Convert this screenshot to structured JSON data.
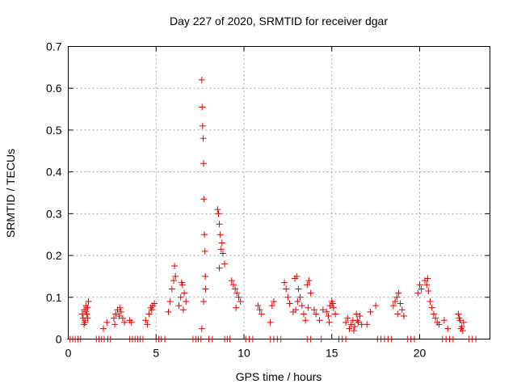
{
  "chart_data": {
    "type": "scatter",
    "title": "Day 227 of 2020, SRMTID for receiver dgar",
    "xlabel": "GPS time / hours",
    "ylabel": "SRMTID / TECUs",
    "xlim": [
      0,
      24
    ],
    "ylim": [
      0,
      0.7
    ],
    "xticks": [
      0,
      5,
      10,
      15,
      20
    ],
    "xtick_labels": [
      "0",
      "5",
      "10",
      "15",
      "20"
    ],
    "yticks": [
      0,
      0.1,
      0.2,
      0.3,
      0.4,
      0.5,
      0.6,
      0.7
    ],
    "ytick_labels": [
      "0",
      "0.1",
      "0.2",
      "0.3",
      "0.4",
      "0.5",
      "0.6",
      "0.7"
    ],
    "grid": true,
    "marker": "+",
    "color": "#e00000",
    "series": [
      {
        "name": "SRMTID",
        "x": [
          0.1,
          0.25,
          0.4,
          0.55,
          0.7,
          1.6,
          1.75,
          1.9,
          2.05,
          2.25,
          2.4,
          3.5,
          3.65,
          3.8,
          3.95,
          4.1,
          4.25,
          5.0,
          5.15,
          5.3,
          5.5,
          7.1,
          7.25,
          7.4,
          7.55,
          8.0,
          8.2,
          8.9,
          9.05,
          9.2,
          10.1,
          10.3,
          10.5,
          11.5,
          11.7,
          11.9,
          12.1,
          13.6,
          13.8,
          14.4,
          15.4,
          15.6,
          15.8,
          17.6,
          17.8,
          18.0,
          18.2,
          18.4,
          19.3,
          19.5,
          19.7,
          21.3,
          21.5,
          21.7,
          21.9,
          22.8,
          23.0,
          23.2,
          0.8,
          0.85,
          0.9,
          0.95,
          1.0,
          1.05,
          1.1,
          1.15,
          0.9,
          1.0,
          1.1,
          0.95,
          2.0,
          2.2,
          2.6,
          2.7,
          2.8,
          2.9,
          3.0,
          3.1,
          3.2,
          2.65,
          2.95,
          3.5,
          3.6,
          4.4,
          4.5,
          4.6,
          4.7,
          4.8,
          4.9,
          4.75,
          5.7,
          5.8,
          5.9,
          6.0,
          6.1,
          6.05,
          6.3,
          6.4,
          6.5,
          6.6,
          6.7,
          6.45,
          6.55,
          7.6,
          7.62,
          7.65,
          7.68,
          7.7,
          7.72,
          7.75,
          7.78,
          7.8,
          7.82,
          7.6,
          7.7,
          8.5,
          8.55,
          8.6,
          8.65,
          8.7,
          8.8,
          8.9,
          8.6,
          8.75,
          9.3,
          9.4,
          9.5,
          9.6,
          9.7,
          9.8,
          9.55,
          10.8,
          10.9,
          11.0,
          11.5,
          11.6,
          11.7,
          12.3,
          12.4,
          12.5,
          12.6,
          12.8,
          12.9,
          13.0,
          13.1,
          13.2,
          12.95,
          13.05,
          13.3,
          13.4,
          13.5,
          13.6,
          13.7,
          13.8,
          13.65,
          14.0,
          14.1,
          14.3,
          14.5,
          14.7,
          14.8,
          14.9,
          15.0,
          15.1,
          15.2,
          14.85,
          15.05,
          15.8,
          15.9,
          16.0,
          16.1,
          16.2,
          16.3,
          16.4,
          16.5,
          16.6,
          16.7,
          16.25,
          16.45,
          17.0,
          17.2,
          17.5,
          18.5,
          18.6,
          18.7,
          18.8,
          18.9,
          19.0,
          19.1,
          18.75,
          19.9,
          20.0,
          20.1,
          20.3,
          20.4,
          20.5,
          20.6,
          20.7,
          20.8,
          20.9,
          21.0,
          21.1,
          20.45,
          21.4,
          21.6,
          22.2,
          22.3,
          22.4,
          22.5,
          22.35,
          22.45,
          22.25
        ],
        "y": [
          0,
          0,
          0,
          0,
          0,
          0,
          0,
          0,
          0,
          0,
          0,
          0,
          0,
          0,
          0,
          0,
          0,
          0,
          0,
          0,
          0,
          0,
          0,
          0,
          0,
          0,
          0,
          0,
          0,
          0,
          0,
          0,
          0,
          0,
          0,
          0,
          0,
          0,
          0,
          0,
          0,
          0,
          0,
          0,
          0,
          0,
          0,
          0,
          0,
          0,
          0,
          0,
          0,
          0,
          0,
          0,
          0,
          0,
          0.06,
          0.05,
          0.07,
          0.04,
          0.08,
          0.06,
          0.05,
          0.09,
          0.035,
          0.065,
          0.075,
          0.045,
          0.025,
          0.04,
          0.05,
          0.06,
          0.07,
          0.055,
          0.065,
          0.05,
          0.04,
          0.035,
          0.075,
          0.045,
          0.04,
          0.045,
          0.035,
          0.06,
          0.075,
          0.08,
          0.085,
          0.07,
          0.065,
          0.09,
          0.12,
          0.14,
          0.15,
          0.175,
          0.08,
          0.1,
          0.13,
          0.11,
          0.09,
          0.135,
          0.07,
          0.62,
          0.555,
          0.51,
          0.48,
          0.42,
          0.335,
          0.25,
          0.21,
          0.15,
          0.12,
          0.025,
          0.09,
          0.31,
          0.3,
          0.275,
          0.25,
          0.215,
          0.205,
          0.18,
          0.17,
          0.23,
          0.14,
          0.13,
          0.12,
          0.11,
          0.1,
          0.09,
          0.075,
          0.08,
          0.07,
          0.06,
          0.04,
          0.08,
          0.09,
          0.135,
          0.12,
          0.1,
          0.085,
          0.065,
          0.145,
          0.15,
          0.12,
          0.1,
          0.07,
          0.09,
          0.08,
          0.06,
          0.045,
          0.13,
          0.14,
          0.11,
          0.075,
          0.07,
          0.06,
          0.045,
          0.07,
          0.065,
          0.055,
          0.08,
          0.09,
          0.075,
          0.06,
          0.04,
          0.085,
          0.04,
          0.05,
          0.025,
          0.035,
          0.045,
          0.03,
          0.06,
          0.04,
          0.055,
          0.035,
          0.02,
          0.045,
          0.035,
          0.065,
          0.08,
          0.08,
          0.09,
          0.1,
          0.11,
          0.085,
          0.07,
          0.055,
          0.06,
          0.11,
          0.13,
          0.12,
          0.14,
          0.13,
          0.115,
          0.09,
          0.075,
          0.06,
          0.05,
          0.04,
          0.035,
          0.145,
          0.045,
          0.025,
          0.06,
          0.045,
          0.03,
          0.04,
          0.025,
          0.02,
          0.05
        ]
      }
    ]
  }
}
